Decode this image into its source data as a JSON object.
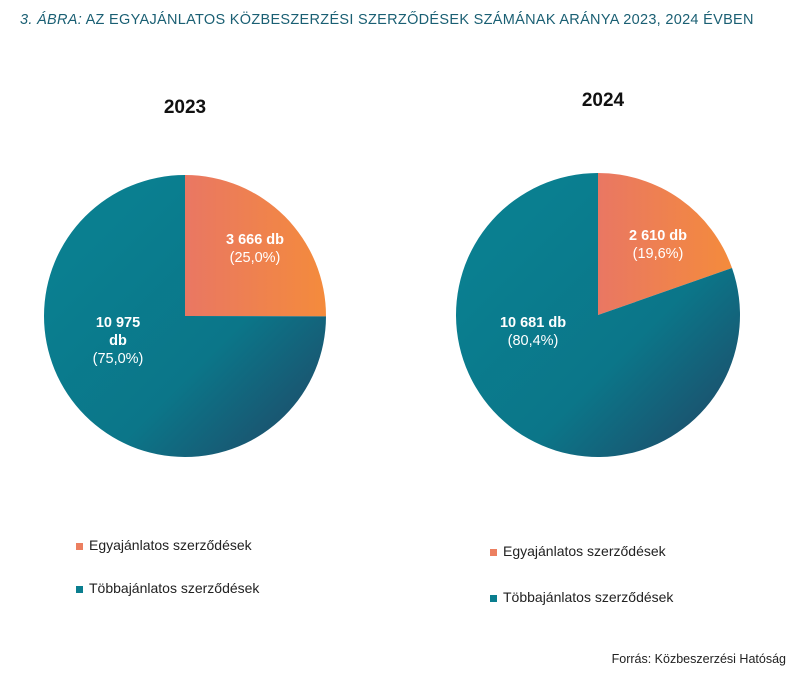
{
  "figure": {
    "title_prefix": "3. ÁBRA:",
    "title_text": "AZ EGYAJÁNLATOS KÖZBESZERZÉSI SZERZŐDÉSEK SZÁMÁNAK ARÁNYA 2023, 2024 ÉVBEN",
    "source": "Forrás: Közbeszerzési Hatóság"
  },
  "colors": {
    "egy": "#ec7f60",
    "egy_light": "#f58a3e",
    "tobb": "#0a7e8f",
    "tobb_dark": "#1d4e6b",
    "title": "#1a5f73"
  },
  "chart_data": [
    {
      "type": "pie",
      "title": "2023",
      "slices": [
        {
          "name": "Egyajánlatos szerződések",
          "value": 3666,
          "percent": 25.0,
          "value_label": "3 666 db",
          "percent_label": "(25,0%)"
        },
        {
          "name": "Többajánlatos szerződések",
          "value": 10975,
          "percent": 75.0,
          "value_label_lines": [
            "10 975",
            "db"
          ],
          "percent_label": "(75,0%)"
        }
      ],
      "legend": [
        "Egyajánlatos szerződések",
        "Többajánlatos szerződések"
      ]
    },
    {
      "type": "pie",
      "title": "2024",
      "slices": [
        {
          "name": "Egyajánlatos szerződések",
          "value": 2610,
          "percent": 19.6,
          "value_label": "2 610 db",
          "percent_label": "(19,6%)"
        },
        {
          "name": "Többajánlatos szerződések",
          "value": 10681,
          "percent": 80.4,
          "value_label": "10 681 db",
          "percent_label": "(80,4%)"
        }
      ],
      "legend": [
        "Egyajánlatos szerződések",
        "Többajánlatos szerződések"
      ]
    }
  ]
}
